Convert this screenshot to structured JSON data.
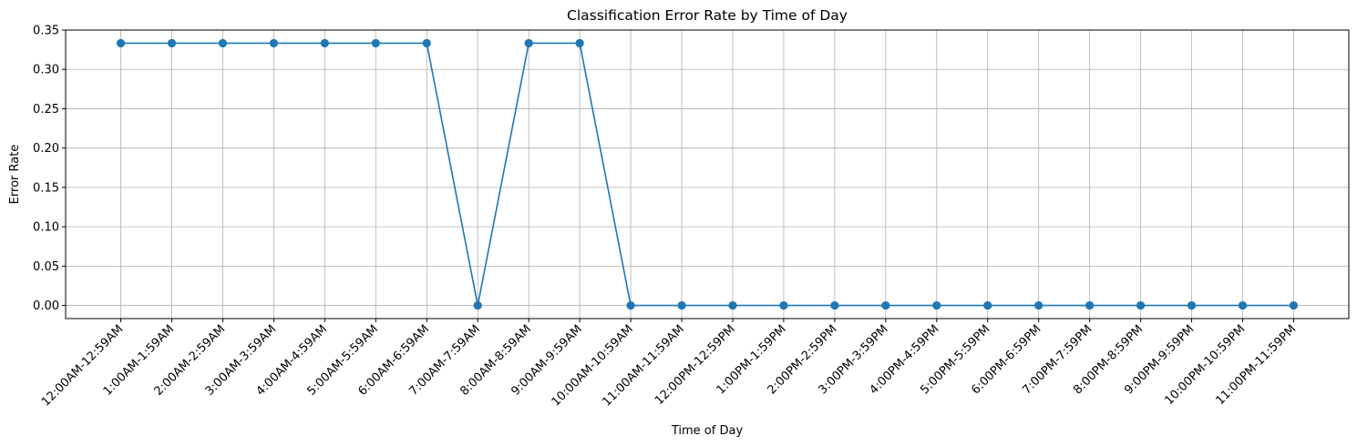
{
  "chart_data": {
    "type": "line",
    "title": "Classification Error Rate by Time of Day",
    "xlabel": "Time of Day",
    "ylabel": "Error Rate",
    "categories": [
      "12:00AM-12:59AM",
      "1:00AM-1:59AM",
      "2:00AM-2:59AM",
      "3:00AM-3:59AM",
      "4:00AM-4:59AM",
      "5:00AM-5:59AM",
      "6:00AM-6:59AM",
      "7:00AM-7:59AM",
      "8:00AM-8:59AM",
      "9:00AM-9:59AM",
      "10:00AM-10:59AM",
      "11:00AM-11:59AM",
      "12:00PM-12:59PM",
      "1:00PM-1:59PM",
      "2:00PM-2:59PM",
      "3:00PM-3:59PM",
      "4:00PM-4:59PM",
      "5:00PM-5:59PM",
      "6:00PM-6:59PM",
      "7:00PM-7:59PM",
      "8:00PM-8:59PM",
      "9:00PM-9:59PM",
      "10:00PM-10:59PM",
      "11:00PM-11:59PM"
    ],
    "series": [
      {
        "values": [
          0.3333,
          0.3333,
          0.3333,
          0.3333,
          0.3333,
          0.3333,
          0.3333,
          0.0,
          0.3333,
          0.3333,
          0.0,
          0.0,
          0.0,
          0.0,
          0.0,
          0.0,
          0.0,
          0.0,
          0.0,
          0.0,
          0.0,
          0.0,
          0.0,
          0.0
        ],
        "color": "#1f77b4",
        "marker": "circle"
      }
    ],
    "ylim": [
      -0.0167,
      0.35
    ],
    "yticks": [
      0.0,
      0.05,
      0.1,
      0.15,
      0.2,
      0.25,
      0.3,
      0.35
    ],
    "ytick_labels": [
      "0.00",
      "0.05",
      "0.10",
      "0.15",
      "0.20",
      "0.25",
      "0.30",
      "0.35"
    ],
    "grid": true,
    "x_tick_rotation": 45
  }
}
